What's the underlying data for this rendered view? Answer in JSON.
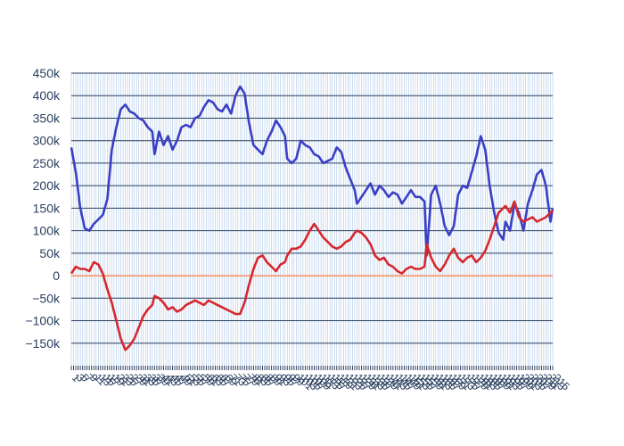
{
  "chart_data": {
    "type": "line",
    "title": "",
    "xlabel": "",
    "ylabel": "",
    "ylim": [
      -200000,
      450000
    ],
    "yticks": [
      -150000,
      -100000,
      -50000,
      0,
      50000,
      100000,
      150000,
      200000,
      250000,
      300000,
      350000,
      400000,
      450000
    ],
    "ytick_labels": [
      "−150k",
      "−100k",
      "−50k",
      "0",
      "50k",
      "100k",
      "150k",
      "200k",
      "250k",
      "300k",
      "350k",
      "400k",
      "450k"
    ],
    "x_count": 215,
    "grid": true,
    "legend": "none",
    "zero_line_color": "#f4a582",
    "series": [
      {
        "color": "#3b3fc4",
        "points": [
          [
            0,
            285000
          ],
          [
            2,
            230000
          ],
          [
            4,
            150000
          ],
          [
            6,
            105000
          ],
          [
            8,
            100000
          ],
          [
            10,
            115000
          ],
          [
            12,
            125000
          ],
          [
            14,
            135000
          ],
          [
            16,
            170000
          ],
          [
            18,
            280000
          ],
          [
            20,
            330000
          ],
          [
            22,
            370000
          ],
          [
            24,
            380000
          ],
          [
            26,
            365000
          ],
          [
            28,
            360000
          ],
          [
            30,
            350000
          ],
          [
            32,
            345000
          ],
          [
            34,
            330000
          ],
          [
            36,
            320000
          ],
          [
            37,
            270000
          ],
          [
            39,
            320000
          ],
          [
            41,
            290000
          ],
          [
            43,
            310000
          ],
          [
            45,
            280000
          ],
          [
            47,
            300000
          ],
          [
            49,
            330000
          ],
          [
            51,
            335000
          ],
          [
            53,
            330000
          ],
          [
            55,
            350000
          ],
          [
            57,
            355000
          ],
          [
            59,
            375000
          ],
          [
            61,
            390000
          ],
          [
            63,
            385000
          ],
          [
            65,
            370000
          ],
          [
            67,
            365000
          ],
          [
            69,
            380000
          ],
          [
            71,
            360000
          ],
          [
            73,
            400000
          ],
          [
            75,
            420000
          ],
          [
            77,
            405000
          ],
          [
            79,
            340000
          ],
          [
            81,
            290000
          ],
          [
            83,
            280000
          ],
          [
            85,
            270000
          ],
          [
            87,
            300000
          ],
          [
            89,
            320000
          ],
          [
            91,
            345000
          ],
          [
            93,
            330000
          ],
          [
            95,
            310000
          ],
          [
            96,
            260000
          ],
          [
            98,
            250000
          ],
          [
            100,
            260000
          ],
          [
            102,
            300000
          ],
          [
            104,
            290000
          ],
          [
            106,
            285000
          ],
          [
            108,
            270000
          ],
          [
            110,
            265000
          ],
          [
            112,
            250000
          ],
          [
            114,
            255000
          ],
          [
            116,
            260000
          ],
          [
            118,
            285000
          ],
          [
            120,
            275000
          ],
          [
            122,
            240000
          ],
          [
            124,
            215000
          ],
          [
            126,
            190000
          ],
          [
            127,
            160000
          ],
          [
            129,
            175000
          ],
          [
            131,
            190000
          ],
          [
            133,
            205000
          ],
          [
            135,
            180000
          ],
          [
            137,
            200000
          ],
          [
            139,
            190000
          ],
          [
            141,
            175000
          ],
          [
            143,
            185000
          ],
          [
            145,
            180000
          ],
          [
            147,
            160000
          ],
          [
            149,
            175000
          ],
          [
            151,
            190000
          ],
          [
            153,
            175000
          ],
          [
            155,
            175000
          ],
          [
            157,
            165000
          ],
          [
            158,
            45000
          ],
          [
            160,
            180000
          ],
          [
            162,
            200000
          ],
          [
            164,
            160000
          ],
          [
            166,
            110000
          ],
          [
            168,
            90000
          ],
          [
            170,
            110000
          ],
          [
            172,
            180000
          ],
          [
            174,
            200000
          ],
          [
            176,
            195000
          ],
          [
            178,
            230000
          ],
          [
            180,
            265000
          ],
          [
            182,
            310000
          ],
          [
            184,
            280000
          ],
          [
            186,
            200000
          ],
          [
            188,
            140000
          ],
          [
            190,
            95000
          ],
          [
            192,
            80000
          ],
          [
            193,
            120000
          ],
          [
            195,
            100000
          ],
          [
            197,
            160000
          ],
          [
            199,
            140000
          ],
          [
            201,
            100000
          ],
          [
            203,
            160000
          ],
          [
            205,
            190000
          ],
          [
            207,
            225000
          ],
          [
            209,
            235000
          ],
          [
            211,
            200000
          ],
          [
            213,
            120000
          ],
          [
            214,
            150000
          ]
        ]
      },
      {
        "color": "#d6282d",
        "points": [
          [
            0,
            5000
          ],
          [
            2,
            20000
          ],
          [
            4,
            15000
          ],
          [
            6,
            15000
          ],
          [
            8,
            10000
          ],
          [
            10,
            30000
          ],
          [
            12,
            25000
          ],
          [
            14,
            5000
          ],
          [
            16,
            -30000
          ],
          [
            18,
            -60000
          ],
          [
            20,
            -100000
          ],
          [
            22,
            -140000
          ],
          [
            24,
            -165000
          ],
          [
            26,
            -155000
          ],
          [
            28,
            -140000
          ],
          [
            30,
            -115000
          ],
          [
            32,
            -90000
          ],
          [
            34,
            -75000
          ],
          [
            36,
            -65000
          ],
          [
            37,
            -45000
          ],
          [
            39,
            -50000
          ],
          [
            41,
            -60000
          ],
          [
            43,
            -75000
          ],
          [
            45,
            -70000
          ],
          [
            47,
            -80000
          ],
          [
            49,
            -75000
          ],
          [
            51,
            -65000
          ],
          [
            53,
            -60000
          ],
          [
            55,
            -55000
          ],
          [
            57,
            -60000
          ],
          [
            59,
            -65000
          ],
          [
            61,
            -55000
          ],
          [
            63,
            -60000
          ],
          [
            65,
            -65000
          ],
          [
            67,
            -70000
          ],
          [
            69,
            -75000
          ],
          [
            71,
            -80000
          ],
          [
            73,
            -85000
          ],
          [
            75,
            -85000
          ],
          [
            77,
            -60000
          ],
          [
            79,
            -20000
          ],
          [
            81,
            15000
          ],
          [
            83,
            40000
          ],
          [
            85,
            45000
          ],
          [
            87,
            30000
          ],
          [
            89,
            20000
          ],
          [
            91,
            10000
          ],
          [
            93,
            25000
          ],
          [
            95,
            30000
          ],
          [
            96,
            45000
          ],
          [
            98,
            60000
          ],
          [
            100,
            60000
          ],
          [
            102,
            65000
          ],
          [
            104,
            80000
          ],
          [
            106,
            100000
          ],
          [
            108,
            115000
          ],
          [
            110,
            100000
          ],
          [
            112,
            85000
          ],
          [
            114,
            75000
          ],
          [
            116,
            65000
          ],
          [
            118,
            60000
          ],
          [
            120,
            65000
          ],
          [
            122,
            75000
          ],
          [
            124,
            80000
          ],
          [
            126,
            95000
          ],
          [
            127,
            100000
          ],
          [
            129,
            95000
          ],
          [
            131,
            85000
          ],
          [
            133,
            70000
          ],
          [
            135,
            45000
          ],
          [
            137,
            35000
          ],
          [
            139,
            40000
          ],
          [
            141,
            25000
          ],
          [
            143,
            20000
          ],
          [
            145,
            10000
          ],
          [
            147,
            5000
          ],
          [
            149,
            15000
          ],
          [
            151,
            20000
          ],
          [
            153,
            15000
          ],
          [
            155,
            15000
          ],
          [
            157,
            20000
          ],
          [
            158,
            70000
          ],
          [
            160,
            40000
          ],
          [
            162,
            20000
          ],
          [
            164,
            10000
          ],
          [
            166,
            25000
          ],
          [
            168,
            45000
          ],
          [
            170,
            60000
          ],
          [
            172,
            40000
          ],
          [
            174,
            30000
          ],
          [
            176,
            40000
          ],
          [
            178,
            45000
          ],
          [
            180,
            30000
          ],
          [
            182,
            40000
          ],
          [
            184,
            55000
          ],
          [
            186,
            80000
          ],
          [
            188,
            110000
          ],
          [
            190,
            140000
          ],
          [
            192,
            150000
          ],
          [
            193,
            155000
          ],
          [
            195,
            140000
          ],
          [
            197,
            165000
          ],
          [
            199,
            130000
          ],
          [
            201,
            120000
          ],
          [
            203,
            125000
          ],
          [
            205,
            130000
          ],
          [
            207,
            120000
          ],
          [
            209,
            125000
          ],
          [
            211,
            130000
          ],
          [
            213,
            140000
          ],
          [
            214,
            145000
          ]
        ]
      }
    ]
  }
}
